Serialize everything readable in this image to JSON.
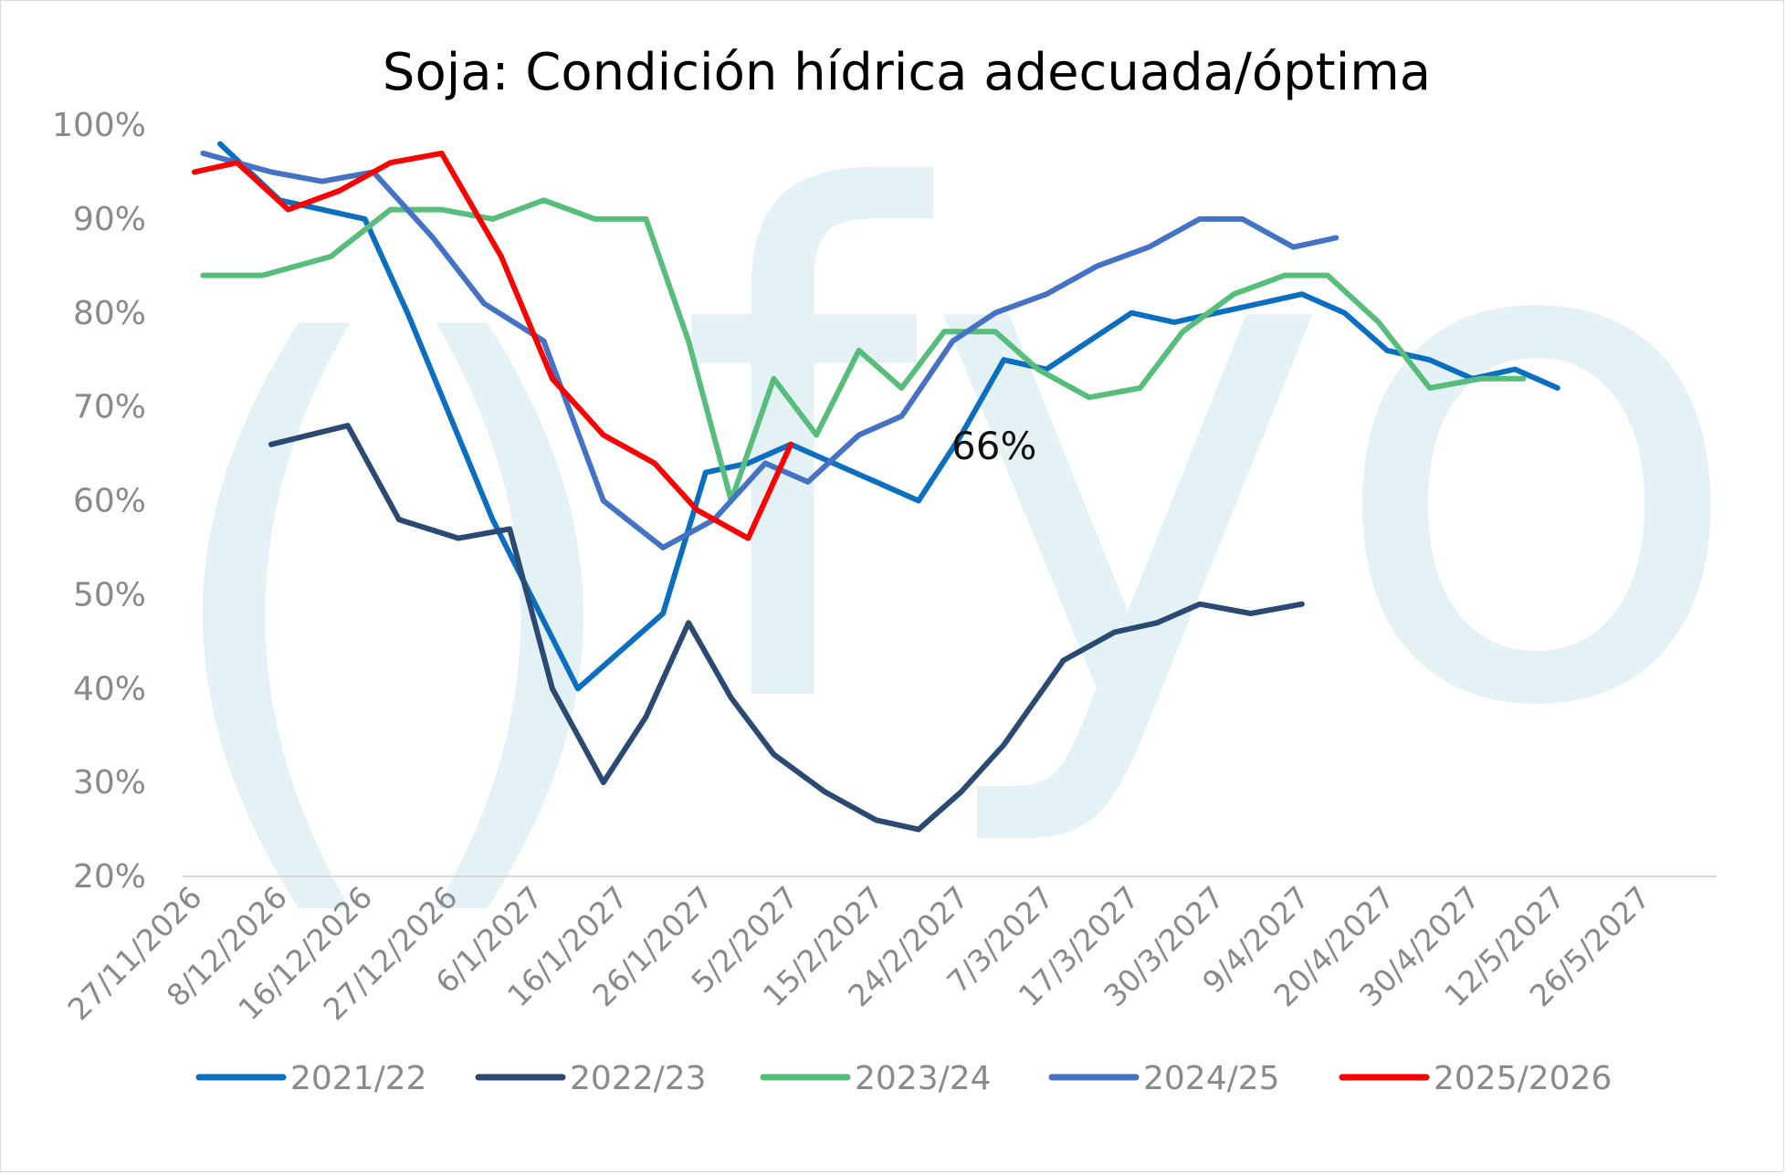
{
  "chart_data": {
    "type": "line",
    "title": "Soja: Condición hídrica adecuada/óptima",
    "xlabel": "",
    "ylabel": "",
    "ylim": [
      0.2,
      1.0
    ],
    "yticks": [
      "20%",
      "30%",
      "40%",
      "50%",
      "60%",
      "70%",
      "80%",
      "90%",
      "100%"
    ],
    "x_tick_labels": [
      "27/11/2026",
      "8/12/2026",
      "16/12/2026",
      "27/12/2026",
      "6/1/2027",
      "16/1/2027",
      "26/1/2027",
      "5/2/2027",
      "15/2/2027",
      "24/2/2027",
      "7/3/2027",
      "17/3/2027",
      "30/3/2027",
      "9/4/2027",
      "20/4/2027",
      "30/4/2027",
      "12/5/2027",
      "26/5/2027"
    ],
    "grid": "horizontal baseline only",
    "legend_position": "bottom",
    "annotation": "66%",
    "watermark": "()fyo",
    "series": [
      {
        "name": "2021/22",
        "color": "#0B6FC1",
        "x": [
          0.3,
          1,
          1.5,
          2,
          2.5,
          3.5,
          4.5,
          5.5,
          6,
          6.5,
          7,
          7.5,
          8,
          8.5,
          9,
          9.5,
          10,
          10.5,
          11,
          11.5,
          12,
          12.5,
          13,
          13.5,
          14,
          14.5,
          15,
          15.5,
          16,
          16.5,
          17,
          17.5,
          18,
          18.5
        ],
        "y": [
          0.98,
          0.92,
          0.91,
          0.9,
          0.8,
          0.58,
          0.4,
          0.48,
          0.63,
          0.64,
          0.66,
          0.64,
          0.62,
          0.6,
          0.67,
          0.75,
          0.74,
          0.77,
          0.8,
          0.79,
          0.8,
          0.81,
          0.82,
          0.8,
          0.76,
          0.75,
          0.73,
          0.74,
          0.72,
          null,
          null,
          null,
          null,
          null
        ]
      },
      {
        "name": "2022/23",
        "color": "#2A4A73",
        "x": [
          0.9,
          1.8,
          2.4,
          3.1,
          3.7,
          4.2,
          4.8,
          5.3,
          5.8,
          6.3,
          6.8,
          7.4,
          8,
          8.5,
          9,
          9.5,
          10.2,
          10.8,
          11.3,
          11.8,
          12.4,
          13,
          13.5,
          14.1
        ],
        "y": [
          0.66,
          0.68,
          0.58,
          0.56,
          0.57,
          0.4,
          0.3,
          0.37,
          0.47,
          0.39,
          0.33,
          0.29,
          0.26,
          0.25,
          0.29,
          0.34,
          0.43,
          0.46,
          0.47,
          0.49,
          0.48,
          0.49,
          null,
          null
        ]
      },
      {
        "name": "2023/24",
        "color": "#57BD7A",
        "x": [
          0.1,
          0.8,
          1.6,
          2.3,
          2.9,
          3.5,
          4.1,
          4.7,
          5.3,
          5.8,
          6.3,
          6.8,
          7.3,
          7.8,
          8.3,
          8.8,
          9.4,
          9.9,
          10.5,
          11.1,
          11.6,
          12.2,
          12.8,
          13.3,
          13.9,
          14.5,
          15.1,
          15.6,
          16.2,
          16.8,
          17.4,
          17.9
        ],
        "y": [
          0.84,
          0.84,
          0.86,
          0.91,
          0.91,
          0.9,
          0.92,
          0.9,
          0.9,
          0.77,
          0.6,
          0.73,
          0.67,
          0.76,
          0.72,
          0.78,
          0.78,
          0.74,
          0.71,
          0.72,
          0.78,
          0.82,
          0.84,
          0.84,
          0.79,
          0.72,
          0.73,
          0.73,
          null,
          null,
          null,
          null
        ]
      },
      {
        "name": "2024/25",
        "color": "#4472C4",
        "x": [
          0.1,
          0.9,
          1.5,
          2.1,
          2.8,
          3.4,
          4.1,
          4.8,
          5.5,
          6.1,
          6.7,
          7.2,
          7.8,
          8.3,
          8.9,
          9.4,
          10,
          10.6,
          11.2,
          11.8,
          12.3,
          12.9,
          13.4,
          14
        ],
        "y": [
          0.97,
          0.95,
          0.94,
          0.95,
          0.88,
          0.81,
          0.77,
          0.6,
          0.55,
          0.58,
          0.64,
          0.62,
          0.67,
          0.69,
          0.77,
          0.8,
          0.82,
          0.85,
          0.87,
          0.9,
          0.9,
          0.87,
          0.88,
          null
        ]
      },
      {
        "name": "2025/2026",
        "color": "#FF0000",
        "x": [
          0,
          0.5,
          1.1,
          1.7,
          2.3,
          2.9,
          3.6,
          4.2,
          4.8,
          5.4,
          5.9,
          6.5,
          7,
          7.6
        ],
        "y": [
          0.95,
          0.96,
          0.91,
          0.93,
          0.96,
          0.97,
          0.86,
          0.73,
          0.67,
          0.64,
          0.59,
          0.56,
          0.66,
          null
        ]
      }
    ]
  }
}
